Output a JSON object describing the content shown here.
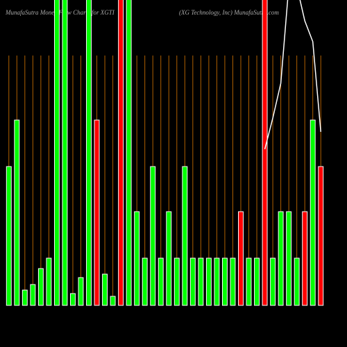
{
  "chart_data": {
    "type": "bar",
    "title": "MunafaSutra  Money Flow  Charts for XGTI",
    "subtitle": "(XG Technology, Inc) MunafaSutra.com",
    "categories": [
      null,
      null,
      null,
      null,
      null,
      null,
      null,
      null,
      null,
      null,
      null,
      null,
      null,
      null,
      null,
      null,
      null,
      null,
      null,
      null,
      null,
      null,
      null,
      null,
      null,
      null,
      null,
      null,
      null,
      null,
      null,
      null,
      null,
      null,
      null,
      null,
      null,
      null,
      null,
      null
    ],
    "values": [
      200,
      267,
      22,
      30,
      53,
      68,
      460,
      460,
      17,
      40,
      460,
      267,
      45,
      13,
      460,
      460,
      135,
      68,
      200,
      68,
      135,
      68,
      200,
      68,
      68,
      68,
      68,
      68,
      68,
      135,
      68,
      68,
      460,
      68,
      135,
      135,
      68,
      135,
      267,
      200
    ],
    "colors": [
      "#00ff00",
      "#00ff00",
      "#00ff00",
      "#00ff00",
      "#00ff00",
      "#00ff00",
      "#00ff00",
      "#00ff00",
      "#00ff00",
      "#00ff00",
      "#00ff00",
      "#ff0000",
      "#00ff00",
      "#00ff00",
      "#ff0000",
      "#00ff00",
      "#00ff00",
      "#00ff00",
      "#00ff00",
      "#00ff00",
      "#00ff00",
      "#00ff00",
      "#00ff00",
      "#00ff00",
      "#00ff00",
      "#00ff00",
      "#00ff00",
      "#00ff00",
      "#00ff00",
      "#ff0000",
      "#00ff00",
      "#00ff00",
      "#ff0000",
      "#00ff00",
      "#00ff00",
      "#00ff00",
      "#00ff00",
      "#ff0000",
      "#00ff00",
      "#ff0000"
    ],
    "line": {
      "color": "#ffffff",
      "values": [
        null,
        null,
        null,
        null,
        null,
        null,
        null,
        null,
        null,
        null,
        null,
        null,
        null,
        null,
        null,
        null,
        null,
        null,
        null,
        null,
        null,
        null,
        null,
        null,
        null,
        null,
        null,
        null,
        null,
        null,
        null,
        null,
        225,
        270,
        320,
        460,
        460,
        410,
        380,
        250
      ]
    },
    "ylim": [
      0,
      440
    ],
    "grid": true,
    "grid_color": "#b06000"
  }
}
